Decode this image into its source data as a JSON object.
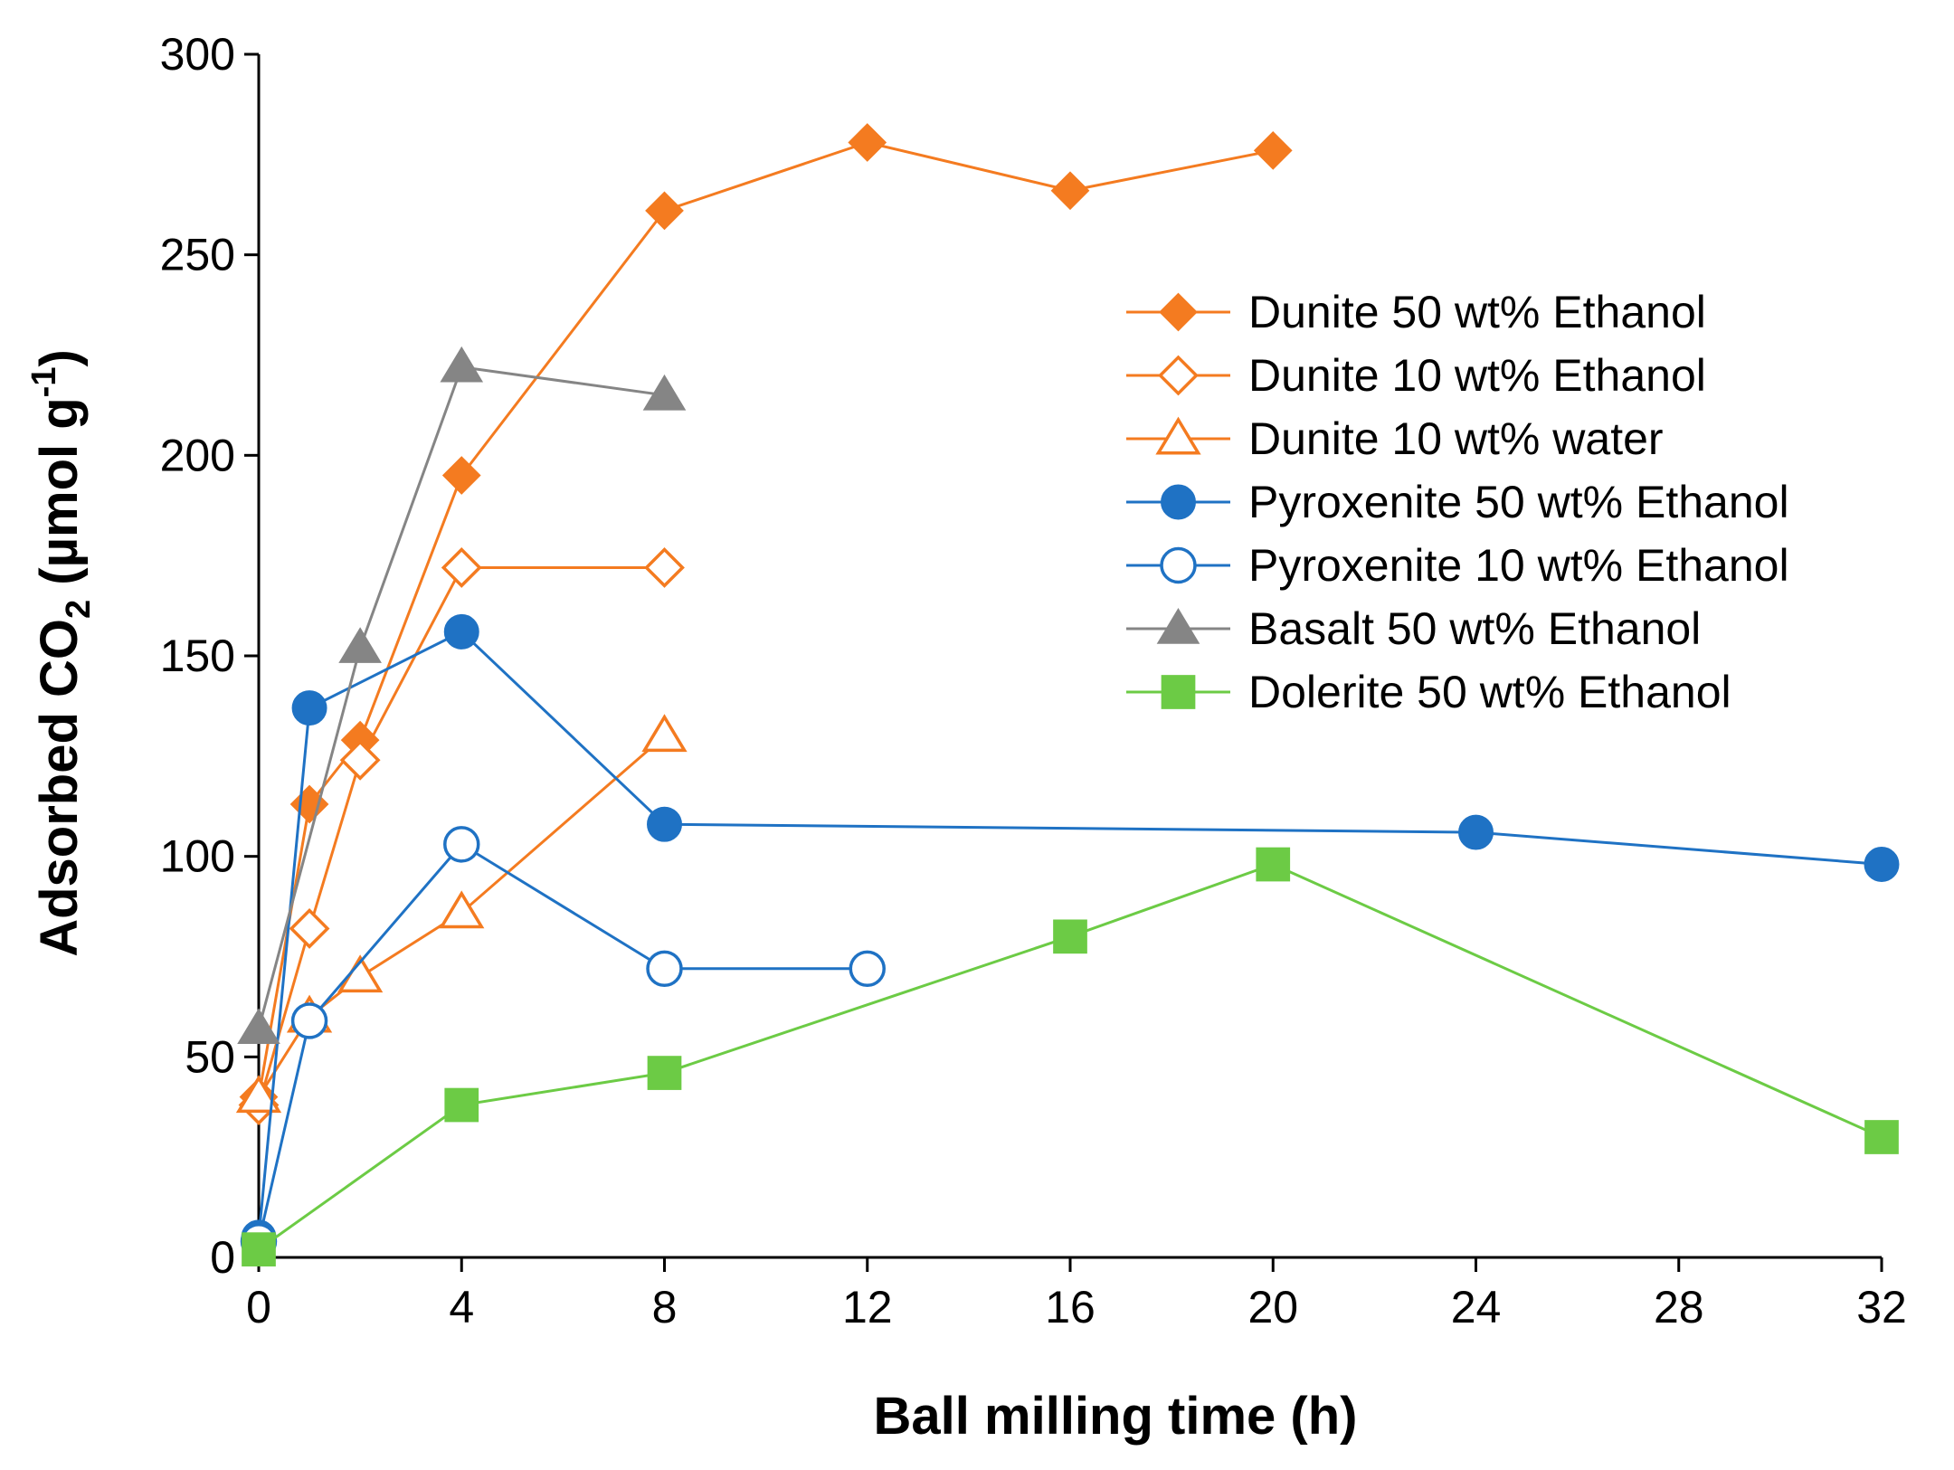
{
  "chart_data": {
    "type": "line",
    "title": "",
    "xlabel": "Ball milling time (h)",
    "ylabel_prefix": "Adsorbed CO",
    "ylabel_sub": "2",
    "ylabel_unit_open": " (µmol g",
    "ylabel_sup": "-1",
    "ylabel_unit_close": ")",
    "xlim": [
      0,
      32
    ],
    "ylim": [
      0,
      300
    ],
    "xticks": [
      0,
      4,
      8,
      12,
      16,
      20,
      24,
      28,
      32
    ],
    "yticks": [
      0,
      50,
      100,
      150,
      200,
      250,
      300
    ],
    "grid": false,
    "legend_position": "top-right",
    "series": [
      {
        "name": "Dunite 50 wt% Ethanol",
        "color": "#F47B20",
        "marker": "diamond",
        "filled": true,
        "points": [
          [
            0,
            40
          ],
          [
            1,
            113
          ],
          [
            2,
            129
          ],
          [
            4,
            195
          ],
          [
            8,
            261
          ],
          [
            12,
            278
          ],
          [
            16,
            266
          ],
          [
            20,
            276
          ]
        ]
      },
      {
        "name": "Dunite 10 wt% Ethanol",
        "color": "#F47B20",
        "marker": "diamond",
        "filled": false,
        "points": [
          [
            0,
            38
          ],
          [
            1,
            82
          ],
          [
            2,
            124
          ],
          [
            4,
            172
          ],
          [
            8,
            172
          ]
        ]
      },
      {
        "name": "Dunite 10 wt% water",
        "color": "#F47B20",
        "marker": "triangle",
        "filled": false,
        "points": [
          [
            0,
            40
          ],
          [
            1,
            60
          ],
          [
            2,
            70
          ],
          [
            4,
            86
          ],
          [
            8,
            130
          ]
        ]
      },
      {
        "name": "Pyroxenite 50 wt% Ethanol",
        "color": "#1F72C4",
        "marker": "circle",
        "filled": true,
        "points": [
          [
            0,
            5
          ],
          [
            1,
            137
          ],
          [
            4,
            156
          ],
          [
            8,
            108
          ],
          [
            24,
            106
          ],
          [
            32,
            98
          ]
        ]
      },
      {
        "name": "Pyroxenite 10 wt% Ethanol",
        "color": "#1F72C4",
        "marker": "circle",
        "filled": false,
        "points": [
          [
            0,
            4
          ],
          [
            1,
            59
          ],
          [
            4,
            103
          ],
          [
            8,
            72
          ],
          [
            12,
            72
          ]
        ]
      },
      {
        "name": "Basalt 50 wt% Ethanol",
        "color": "#858585",
        "marker": "triangle",
        "filled": true,
        "points": [
          [
            0,
            57
          ],
          [
            2,
            152
          ],
          [
            4,
            222
          ],
          [
            8,
            215
          ]
        ]
      },
      {
        "name": "Dolerite 50 wt% Ethanol",
        "color": "#6CCB45",
        "marker": "square",
        "filled": true,
        "points": [
          [
            0,
            2
          ],
          [
            4,
            38
          ],
          [
            8,
            46
          ],
          [
            16,
            80
          ],
          [
            20,
            98
          ],
          [
            32,
            30
          ]
        ]
      }
    ]
  }
}
